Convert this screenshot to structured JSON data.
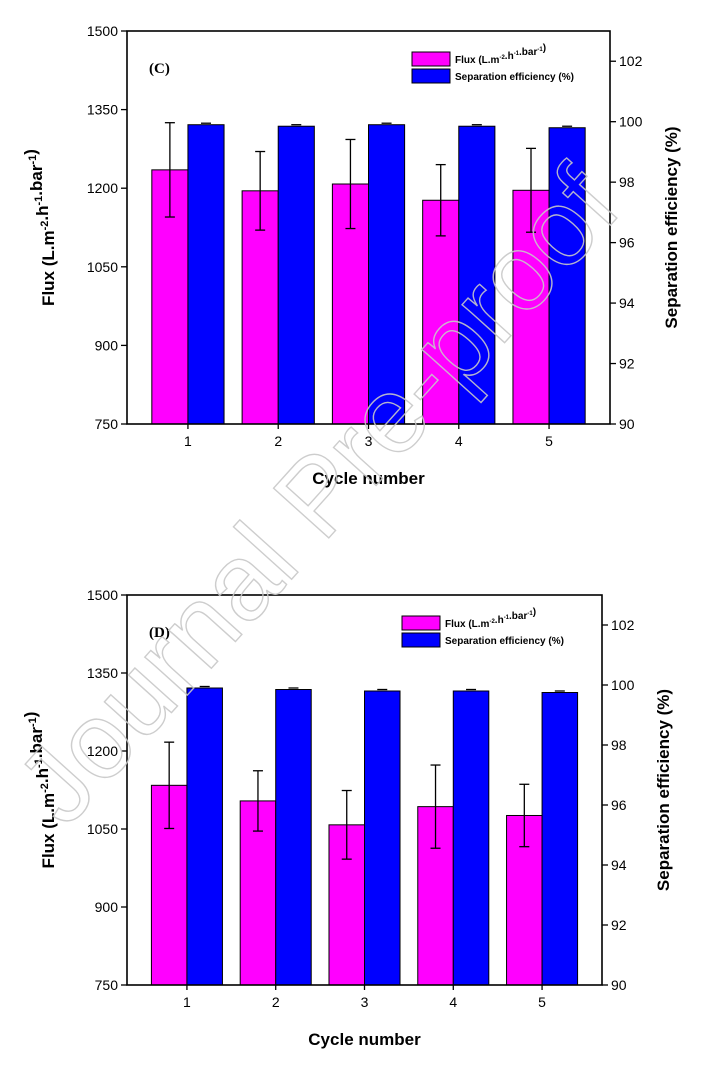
{
  "colors": {
    "flux": "#ff00ff",
    "separation": "#0000ff",
    "error_bar": "#000000",
    "watermark": "#c8c8c8"
  },
  "watermark_text": "Journal Pre-proof",
  "chart_data": [
    {
      "panel_label": "(C)",
      "type": "bar",
      "categories": [
        "1",
        "2",
        "3",
        "4",
        "5"
      ],
      "xlabel": "Cycle number",
      "ylabel_left": "Flux (L.m⁻².h⁻¹.bar⁻¹)",
      "ylabel_right": "Separation efficiency (%)",
      "ylim_left": [
        750,
        1500
      ],
      "yticks_left": [
        750,
        900,
        1050,
        1200,
        1350,
        1500
      ],
      "ylim_right": [
        90,
        103
      ],
      "yticks_right": [
        90,
        92,
        94,
        96,
        98,
        100,
        102
      ],
      "legend_position": "top-right",
      "series": [
        {
          "name": "Flux (L.m⁻².h⁻¹.bar⁻¹)",
          "axis": "left",
          "values": [
            1235,
            1195,
            1208,
            1177,
            1196
          ],
          "error": [
            90,
            75,
            85,
            68,
            80
          ]
        },
        {
          "name": "Separation efficiency (%)",
          "axis": "right",
          "values": [
            99.9,
            99.85,
            99.9,
            99.85,
            99.8
          ],
          "error": [
            0.05,
            0.05,
            0.05,
            0.05,
            0.05
          ]
        }
      ]
    },
    {
      "panel_label": "(D)",
      "type": "bar",
      "categories": [
        "1",
        "2",
        "3",
        "4",
        "5"
      ],
      "xlabel": "Cycle number",
      "ylabel_left": "Flux (L.m⁻².h⁻¹.bar⁻¹)",
      "ylabel_right": "Separation efficiency (%)",
      "ylim_left": [
        750,
        1500
      ],
      "yticks_left": [
        750,
        900,
        1050,
        1200,
        1350,
        1500
      ],
      "ylim_right": [
        90,
        103
      ],
      "yticks_right": [
        90,
        92,
        94,
        96,
        98,
        100,
        102
      ],
      "legend_position": "top-right",
      "series": [
        {
          "name": "Flux (L.m⁻².h⁻¹.bar⁻¹)",
          "axis": "left",
          "values": [
            1134,
            1104,
            1058,
            1093,
            1076
          ],
          "error": [
            83,
            58,
            66,
            80,
            60
          ]
        },
        {
          "name": "Separation efficiency (%)",
          "axis": "right",
          "values": [
            99.9,
            99.85,
            99.8,
            99.8,
            99.75
          ],
          "error": [
            0.05,
            0.05,
            0.05,
            0.05,
            0.05
          ]
        }
      ]
    }
  ]
}
